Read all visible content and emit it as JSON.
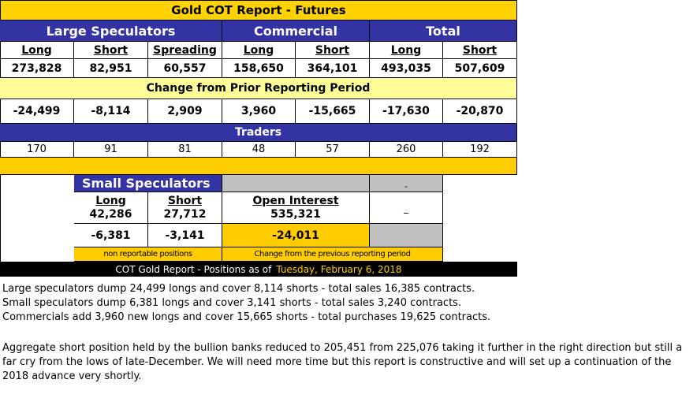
{
  "title": "Gold COT Report - Futures",
  "groups": {
    "large": "Large Speculators",
    "commercial": "Commercial",
    "total": "Total"
  },
  "labels": [
    "Long",
    "Short",
    "Spreading",
    "Long",
    "Short",
    "Long",
    "Short"
  ],
  "positions": [
    "273,828",
    "82,951",
    "60,557",
    "158,650",
    "364,101",
    "493,035",
    "507,609"
  ],
  "change_title": "Change from Prior Reporting Period",
  "changes": [
    "-24,499",
    "-8,114",
    "2,909",
    "3,960",
    "-15,665",
    "-17,630",
    "-20,870"
  ],
  "traders_title": "Traders",
  "traders": [
    "170",
    "91",
    "81",
    "48",
    "57",
    "260",
    "192"
  ],
  "small": {
    "title": "Small Speculators",
    "long_label": "Long",
    "long_value": "42,286",
    "short_label": "Short",
    "short_value": "27,712",
    "long_change": "-6,381",
    "short_change": "-3,141",
    "note": "non reportable positions"
  },
  "open_interest": {
    "label": "Open Interest",
    "value": "535,321",
    "change": "-24,011",
    "note": "Change from the previous reporting period"
  },
  "dash_top": "-",
  "dash_mid": "_",
  "footer": {
    "prefix": "COT Gold Report - Positions as of",
    "date": "Tuesday, February 6, 2018"
  },
  "summary": [
    "Large speculators dump 24,499 longs and cover 8,114 shorts - total sales 16,385 contracts.",
    "Small speculators dump 6,381 longs and cover 3,141 shorts - total sales 3,240 contracts.",
    "Commercials add 3,960 new longs and cover 15,665 shorts - total purchases 19,625 contracts."
  ],
  "commentary": "Aggregate short position held by the bullion banks reduced to 205,451 from 225,076 taking it further in the right direction but still a far cry from the lows of late-December. We will need more time but this report is constructive and will set up a continuation of the 2018 advance very shortly."
}
